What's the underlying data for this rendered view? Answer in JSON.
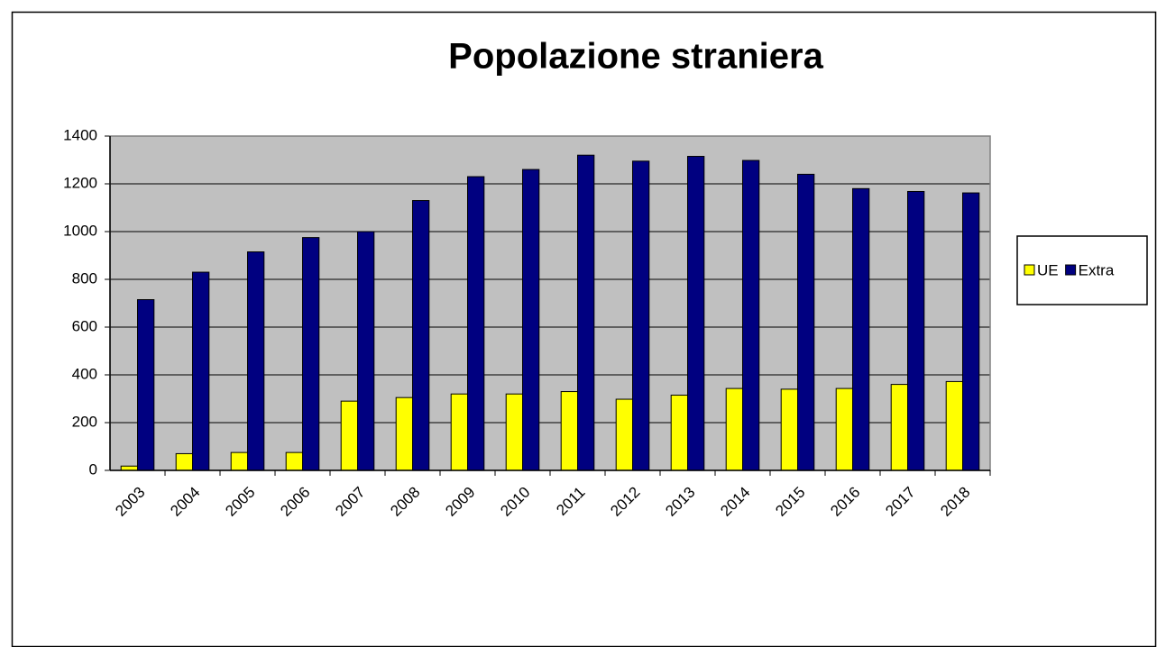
{
  "chart_data": {
    "type": "bar",
    "title": "Popolazione straniera",
    "categories": [
      "2003",
      "2004",
      "2005",
      "2006",
      "2007",
      "2008",
      "2009",
      "2010",
      "2011",
      "2012",
      "2013",
      "2014",
      "2015",
      "2016",
      "2017",
      "2018"
    ],
    "series": [
      {
        "name": "UE",
        "color": "#ffff00",
        "values": [
          18,
          70,
          75,
          75,
          290,
          305,
          320,
          320,
          330,
          298,
          315,
          343,
          340,
          343,
          360,
          372
        ]
      },
      {
        "name": "Extra",
        "color": "#000080",
        "values": [
          715,
          830,
          915,
          975,
          1000,
          1130,
          1230,
          1260,
          1320,
          1295,
          1315,
          1298,
          1240,
          1180,
          1168,
          1162
        ]
      }
    ],
    "ylim": [
      0,
      1400
    ],
    "yticks": [
      0,
      200,
      400,
      600,
      800,
      1000,
      1200,
      1400
    ],
    "grid": true,
    "legend": "right"
  }
}
